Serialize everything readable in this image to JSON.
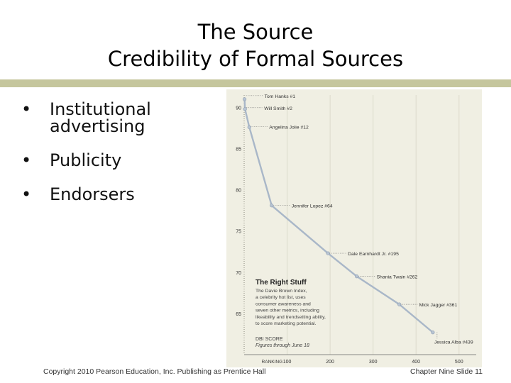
{
  "slide": {
    "title_line1": "The Source",
    "title_line2": "Credibility of Formal Sources",
    "bullets": [
      "Institutional advertising",
      "Publicity",
      "Endorsers"
    ],
    "footer_left": "Copyright 2010 Pearson Education, Inc. Publishing as Prentice Hall",
    "footer_right": "Chapter Nine Slide 11",
    "accent_color": "#c5c69d"
  },
  "chart_data": {
    "type": "line",
    "title": "The Right Stuff",
    "description_lines": [
      "The Davie Brown Index,",
      "a celebrity hot list, uses",
      "consumer awareness and",
      "seven other metrics, including",
      "likeability and trendsetting ability,",
      "to score marketing potential."
    ],
    "ylabel": "DBI SCORE",
    "note": "Figures through June 18",
    "xlabel": "RANKING",
    "x_ticks": [
      100,
      200,
      300,
      400,
      500
    ],
    "y_ticks": [
      90,
      85,
      80,
      75,
      70,
      65
    ],
    "xlim": [
      0,
      540
    ],
    "ylim": [
      60,
      91.5
    ],
    "points": [
      {
        "label": "Tom Hanks #1",
        "x": 1,
        "y": 91.0
      },
      {
        "label": "Will Smith #2",
        "x": 2,
        "y": 89.8
      },
      {
        "label": "Angelina Jolie #12",
        "x": 12,
        "y": 87.6
      },
      {
        "label": "Jennifer Lopez #64",
        "x": 64,
        "y": 78.1
      },
      {
        "label": "Dale Earnhardt Jr. #195",
        "x": 195,
        "y": 72.3
      },
      {
        "label": "Shania Twain #262",
        "x": 262,
        "y": 69.5
      },
      {
        "label": "Mick Jagger #361",
        "x": 361,
        "y": 66.1
      },
      {
        "label": "Jessica Alba #439",
        "x": 439,
        "y": 62.7
      }
    ],
    "line_color": "#a9b7c8",
    "background_color": "#f0efe3"
  }
}
